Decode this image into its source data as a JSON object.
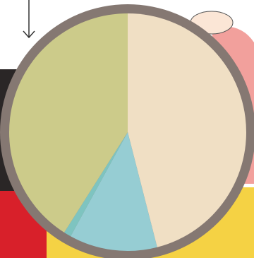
{
  "chart_data": {
    "type": "pie",
    "values": [
      46,
      12,
      1,
      41
    ],
    "colors": [
      "#f0dfc4",
      "#96cdd3",
      "#7ec4c0",
      "#cccb8a"
    ],
    "start_angle": 90,
    "direction": "clockwise",
    "border_color": "#857872"
  }
}
